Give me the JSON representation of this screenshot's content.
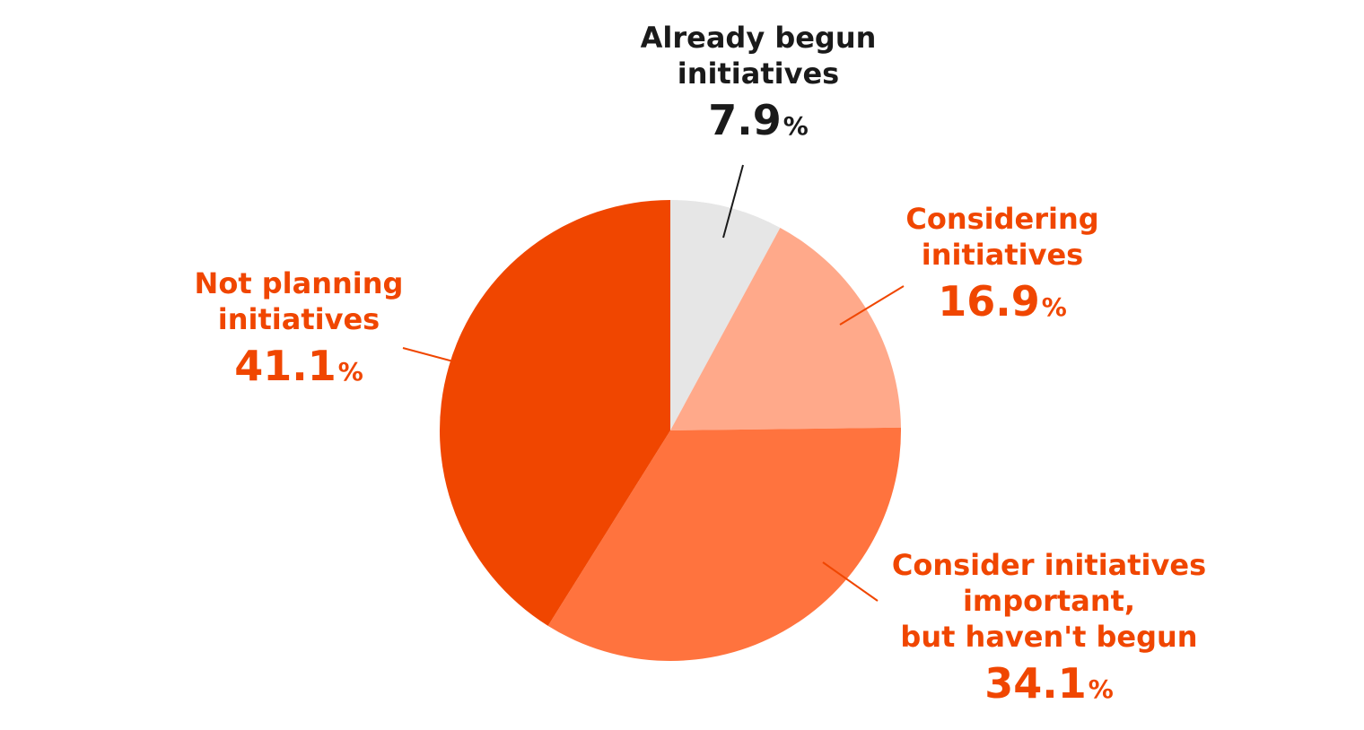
{
  "chart_data": {
    "type": "pie",
    "unit": "%",
    "slices": [
      {
        "label_lines": [
          "Already begun",
          "initiatives"
        ],
        "value": 7.9,
        "color": "#e6e6e6",
        "text_color": "#1a1a1a"
      },
      {
        "label_lines": [
          "Considering",
          "initiatives"
        ],
        "value": 16.9,
        "color": "#ffa98a",
        "text_color": "#f04600"
      },
      {
        "label_lines": [
          "Consider initiatives",
          "important,",
          "but haven't begun"
        ],
        "value": 34.1,
        "color": "#ff733e",
        "text_color": "#f04600"
      },
      {
        "label_lines": [
          "Not planning",
          "initiatives"
        ],
        "value": 41.1,
        "color": "#f04600",
        "text_color": "#f04600"
      }
    ]
  }
}
